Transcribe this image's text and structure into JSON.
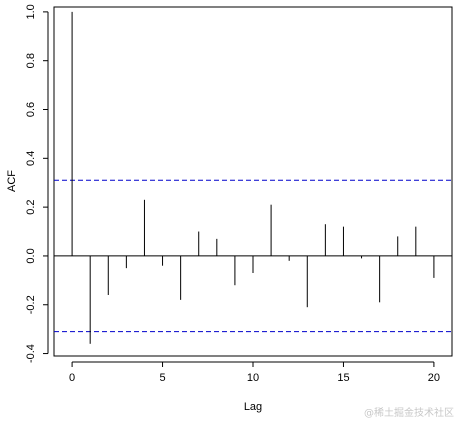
{
  "chart_data": {
    "type": "bar",
    "title": "",
    "xlabel": "Lag",
    "ylabel": "ACF",
    "x": [
      0,
      1,
      2,
      3,
      4,
      5,
      6,
      7,
      8,
      9,
      10,
      11,
      12,
      13,
      14,
      15,
      16,
      17,
      18,
      19,
      20
    ],
    "values": [
      1.0,
      -0.36,
      -0.16,
      -0.05,
      0.23,
      -0.04,
      -0.18,
      0.1,
      0.07,
      -0.12,
      -0.07,
      0.21,
      -0.02,
      -0.21,
      0.13,
      0.12,
      -0.01,
      -0.19,
      0.08,
      0.12,
      -0.09
    ],
    "confidence_band": [
      0.31,
      -0.31
    ],
    "xlim": [
      -1,
      21
    ],
    "ylim": [
      -0.41,
      1.02
    ],
    "x_ticks": [
      0,
      5,
      10,
      15,
      20
    ],
    "x_tick_labels": [
      "0",
      "5",
      "10",
      "15",
      "20"
    ],
    "y_ticks": [
      -0.4,
      -0.2,
      0.0,
      0.2,
      0.4,
      0.6,
      0.8,
      1.0
    ],
    "y_tick_labels": [
      "-0.4",
      "-0.2",
      "0.0",
      "0.2",
      "0.4",
      "0.6",
      "0.8",
      "1.0"
    ],
    "grid": false,
    "colors": {
      "spike": "#000000",
      "confidence_line": "#0000cc",
      "axis": "#000000"
    }
  },
  "watermark": "@稀土掘金技术社区"
}
